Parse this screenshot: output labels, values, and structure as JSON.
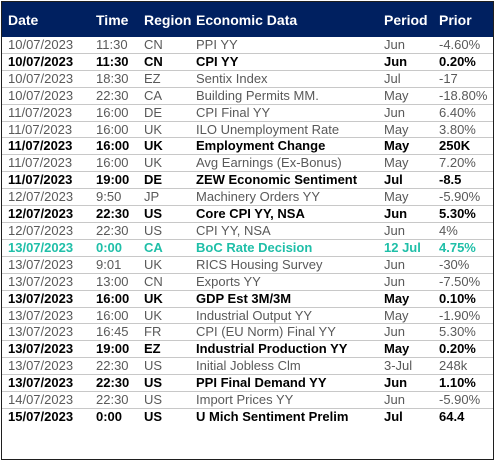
{
  "header": {
    "date": "Date",
    "time": "Time",
    "region": "Region",
    "data": "Economic Data",
    "period": "Period",
    "prior": "Prior"
  },
  "colors": {
    "header_bg": "#002060",
    "highlight": "#1fbfa8"
  },
  "rows": [
    {
      "date": "10/07/2023",
      "time": "11:30",
      "region": "CN",
      "data": "PPI YY",
      "period": "Jun",
      "prior": "-4.60%",
      "style": "normal"
    },
    {
      "date": "10/07/2023",
      "time": "11:30",
      "region": "CN",
      "data": "CPI YY",
      "period": "Jun",
      "prior": "0.20%",
      "style": "bold"
    },
    {
      "date": "10/07/2023",
      "time": "18:30",
      "region": "EZ",
      "data": "Sentix Index",
      "period": "Jul",
      "prior": "-17",
      "style": "normal"
    },
    {
      "date": "10/07/2023",
      "time": "22:30",
      "region": "CA",
      "data": "Building Permits MM.",
      "period": "May",
      "prior": "-18.80%",
      "style": "normal"
    },
    {
      "date": "11/07/2023",
      "time": "16:00",
      "region": "DE",
      "data": "CPI Final YY",
      "period": "Jun",
      "prior": "6.40%",
      "style": "normal"
    },
    {
      "date": "11/07/2023",
      "time": "16:00",
      "region": "UK",
      "data": "ILO Unemployment Rate",
      "period": "May",
      "prior": "3.80%",
      "style": "normal"
    },
    {
      "date": "11/07/2023",
      "time": "16:00",
      "region": "UK",
      "data": "Employment Change",
      "period": "May",
      "prior": "250K",
      "style": "bold"
    },
    {
      "date": "11/07/2023",
      "time": "16:00",
      "region": "UK",
      "data": "Avg Earnings (Ex-Bonus)",
      "period": "May",
      "prior": "7.20%",
      "style": "normal"
    },
    {
      "date": "11/07/2023",
      "time": "19:00",
      "region": "DE",
      "data": "ZEW Economic Sentiment",
      "period": "Jul",
      "prior": "-8.5",
      "style": "bold"
    },
    {
      "date": "12/07/2023",
      "time": "9:50",
      "region": "JP",
      "data": "Machinery Orders YY",
      "period": "May",
      "prior": "-5.90%",
      "style": "normal"
    },
    {
      "date": "12/07/2023",
      "time": "22:30",
      "region": "US",
      "data": "Core CPI YY, NSA",
      "period": "Jun",
      "prior": "5.30%",
      "style": "bold"
    },
    {
      "date": "12/07/2023",
      "time": "22:30",
      "region": "US",
      "data": "CPI YY, NSA",
      "period": "Jun",
      "prior": "4%",
      "style": "normal"
    },
    {
      "date": "13/07/2023",
      "time": "0:00",
      "region": "CA",
      "data": "BoC Rate Decision",
      "period": "12 Jul",
      "prior": "4.75%",
      "style": "highlight"
    },
    {
      "date": "13/07/2023",
      "time": "9:01",
      "region": "UK",
      "data": "RICS Housing Survey",
      "period": "Jun",
      "prior": "-30%",
      "style": "normal"
    },
    {
      "date": "13/07/2023",
      "time": "13:00",
      "region": "CN",
      "data": "Exports YY",
      "period": "Jun",
      "prior": "-7.50%",
      "style": "normal"
    },
    {
      "date": "13/07/2023",
      "time": "16:00",
      "region": "UK",
      "data": "GDP Est 3M/3M",
      "period": "May",
      "prior": "0.10%",
      "style": "bold"
    },
    {
      "date": "13/07/2023",
      "time": "16:00",
      "region": "UK",
      "data": "Industrial Output YY",
      "period": "May",
      "prior": "-1.90%",
      "style": "normal"
    },
    {
      "date": "13/07/2023",
      "time": "16:45",
      "region": "FR",
      "data": "CPI (EU Norm) Final YY",
      "period": "Jun",
      "prior": "5.30%",
      "style": "normal"
    },
    {
      "date": "13/07/2023",
      "time": "19:00",
      "region": "EZ",
      "data": "Industrial Production YY",
      "period": "May",
      "prior": "0.20%",
      "style": "bold"
    },
    {
      "date": "13/07/2023",
      "time": "22:30",
      "region": "US",
      "data": "Initial Jobless Clm",
      "period": "3-Jul",
      "prior": "248k",
      "style": "normal"
    },
    {
      "date": "13/07/2023",
      "time": "22:30",
      "region": "US",
      "data": "PPI Final Demand YY",
      "period": "Jun",
      "prior": "1.10%",
      "style": "bold"
    },
    {
      "date": "14/07/2023",
      "time": "22:30",
      "region": "US",
      "data": "Import Prices YY",
      "period": "Jun",
      "prior": "-5.90%",
      "style": "normal"
    },
    {
      "date": "15/07/2023",
      "time": "0:00",
      "region": "US",
      "data": "U Mich Sentiment Prelim",
      "period": "Jul",
      "prior": "64.4",
      "style": "bold"
    }
  ]
}
